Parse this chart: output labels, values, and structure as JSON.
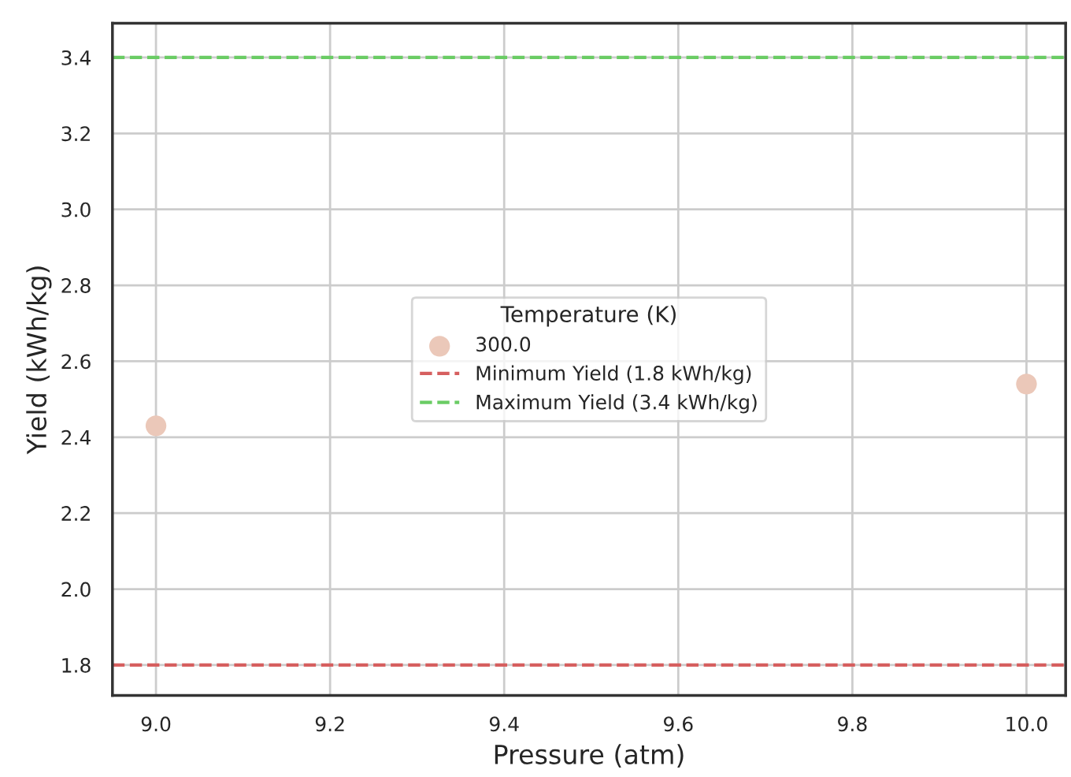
{
  "chart_data": {
    "type": "scatter",
    "xlabel": "Pressure (atm)",
    "ylabel": "Yield (kWh/kg)",
    "legend_title": "Temperature (K)",
    "series": [
      {
        "name": "300.0",
        "color": "#ebc8b9",
        "x": [
          9.0,
          10.0
        ],
        "values": [
          2.43,
          2.54
        ]
      }
    ],
    "ref_lines": [
      {
        "axis": "y",
        "value": 1.8,
        "label": "Minimum Yield (1.8 kWh/kg)",
        "color": "#d65f5f",
        "line_style": "dashed"
      },
      {
        "axis": "y",
        "value": 3.4,
        "label": "Maximum Yield (3.4 kWh/kg)",
        "color": "#6acc64",
        "line_style": "dashed"
      }
    ],
    "xlim": [
      8.95,
      10.045
    ],
    "xticks": [
      {
        "value": 9.0,
        "label": "9.0"
      },
      9.2,
      9.4,
      9.6,
      9.8,
      {
        "value": 10.0,
        "label": "10.0"
      }
    ],
    "ylim": [
      1.72,
      3.49
    ],
    "yticks": [
      1.8,
      {
        "value": 2.0,
        "label": "2.0"
      },
      2.2,
      2.4,
      2.6,
      2.8,
      {
        "value": 3.0,
        "label": "3.0"
      },
      3.2,
      3.4
    ],
    "grid": true,
    "legend": "center",
    "marker": "circle"
  }
}
